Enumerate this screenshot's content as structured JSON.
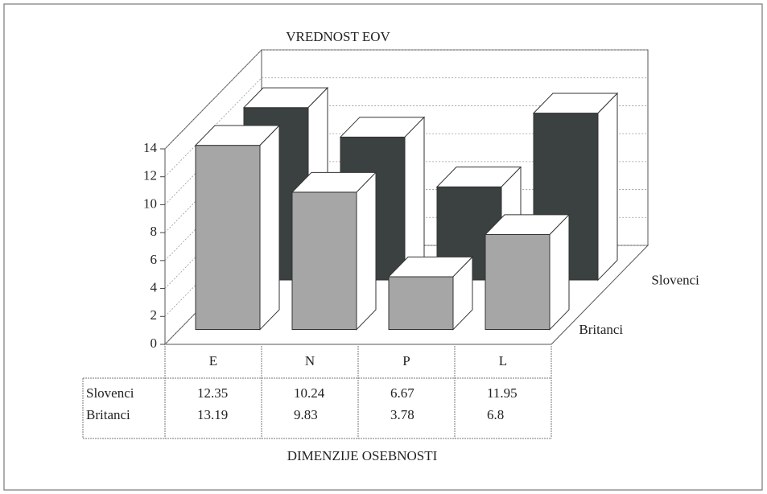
{
  "chart_data": {
    "type": "bar3d",
    "title": "VREDNOST EOV",
    "x_label": "DIMENZIJE OSEBNOSTI",
    "categories": [
      "E",
      "N",
      "P",
      "L"
    ],
    "series": [
      {
        "name": "Slovenci",
        "color": "#3b4040",
        "values": [
          12.35,
          10.24,
          6.67,
          11.95
        ]
      },
      {
        "name": "Britanci",
        "color": "#a6a6a6",
        "values": [
          13.19,
          9.83,
          3.78,
          6.8
        ]
      }
    ],
    "ylim": [
      0,
      14
    ],
    "yticks": [
      0,
      2,
      4,
      6,
      8,
      10,
      12,
      14
    ],
    "grid": true
  }
}
